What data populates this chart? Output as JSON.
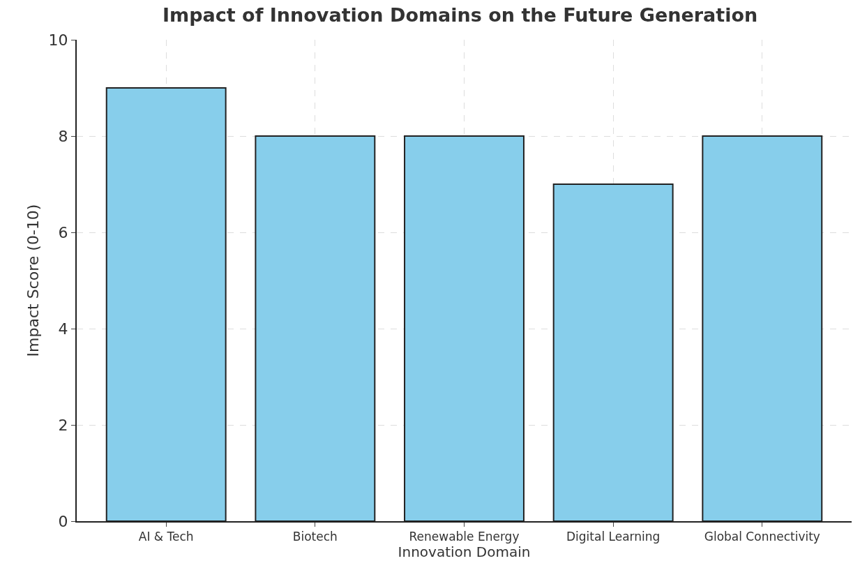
{
  "chart_data": {
    "type": "bar",
    "title": "Impact of Innovation Domains on the Future Generation",
    "xlabel": "Innovation Domain",
    "ylabel": "Impact Score (0-10)",
    "categories": [
      "AI & Tech",
      "Biotech",
      "Renewable Energy",
      "Digital Learning",
      "Global Connectivity"
    ],
    "values": [
      9,
      8,
      8,
      7,
      8
    ],
    "color": "#87ceeb",
    "ylim": [
      0,
      10
    ],
    "yticks": [
      0,
      2,
      4,
      6,
      8,
      10
    ],
    "grid": true
  }
}
